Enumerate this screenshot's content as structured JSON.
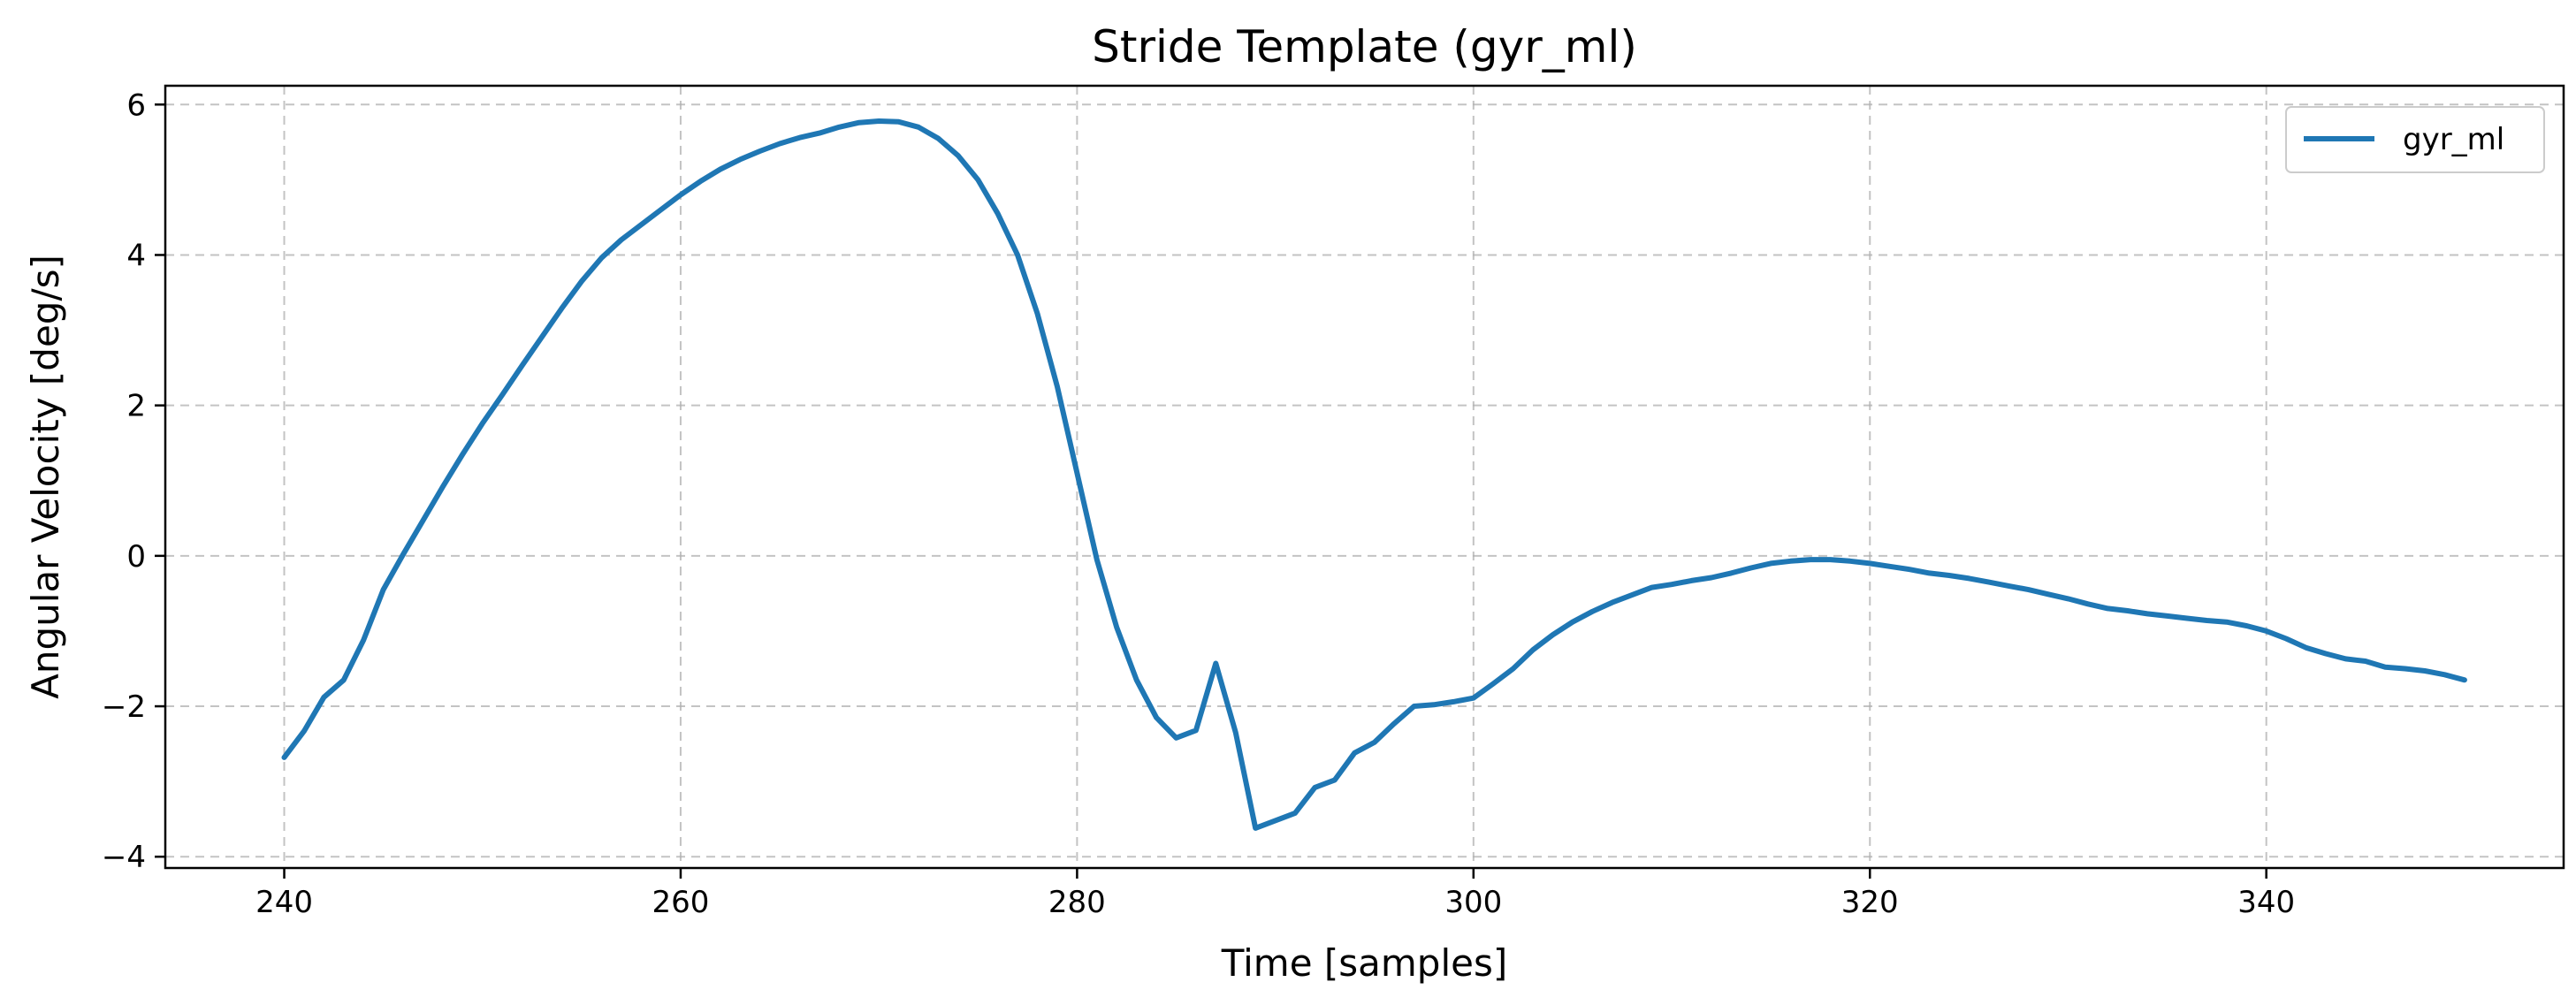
{
  "chart_data": {
    "type": "line",
    "title": "Stride Template (gyr_ml)",
    "xlabel": "Time [samples]",
    "ylabel": "Angular Velocity [deg/s]",
    "xlim": [
      234,
      355
    ],
    "ylim": [
      -4.15,
      6.25
    ],
    "xticks": [
      240,
      260,
      280,
      300,
      320,
      340
    ],
    "yticks": [
      -4,
      -2,
      0,
      2,
      4,
      6
    ],
    "xtick_labels": [
      "240",
      "260",
      "280",
      "300",
      "320",
      "340"
    ],
    "ytick_labels": [
      "−4",
      "−2",
      "0",
      "2",
      "4",
      "6"
    ],
    "grid": true,
    "legend_position": "upper right",
    "colors": {
      "series": "#1f77b4",
      "grid": "#b0b0b0",
      "axes": "#000000"
    },
    "series": [
      {
        "name": "gyr_ml",
        "x": [
          240,
          241,
          242,
          243,
          244,
          245,
          246,
          247,
          248,
          249,
          250,
          251,
          252,
          253,
          254,
          255,
          256,
          257,
          258,
          259,
          260,
          261,
          262,
          263,
          264,
          265,
          266,
          267,
          268,
          269,
          270,
          271,
          272,
          273,
          274,
          275,
          276,
          277,
          278,
          279,
          280,
          281,
          282,
          283,
          284,
          285,
          286,
          287,
          288,
          289,
          290,
          291,
          292,
          293,
          294,
          295,
          296,
          297,
          298,
          299,
          300,
          301,
          302,
          303,
          304,
          305,
          306,
          307,
          308,
          309,
          310,
          311,
          312,
          313,
          314,
          315,
          316,
          317,
          318,
          319,
          320,
          321,
          322,
          323,
          324,
          325,
          326,
          327,
          328,
          329,
          330,
          331,
          332,
          333,
          334,
          335,
          336,
          337,
          338,
          339,
          340,
          341,
          342,
          343,
          344,
          345,
          346,
          347,
          348,
          349,
          350
        ],
        "y": [
          -2.68,
          -2.33,
          -1.88,
          -1.65,
          -1.12,
          -0.45,
          0.02,
          0.47,
          0.92,
          1.35,
          1.76,
          2.14,
          2.53,
          2.91,
          3.29,
          3.65,
          3.96,
          4.2,
          4.4,
          4.6,
          4.8,
          4.98,
          5.14,
          5.27,
          5.38,
          5.48,
          5.56,
          5.62,
          5.7,
          5.76,
          5.78,
          5.77,
          5.7,
          5.55,
          5.32,
          5.0,
          4.55,
          4.0,
          3.22,
          2.25,
          1.1,
          -0.05,
          -0.95,
          -1.65,
          -2.15,
          -2.42,
          -2.32,
          -1.43,
          -2.35,
          -3.62,
          -3.52,
          -3.42,
          -3.08,
          -2.98,
          -2.62,
          -2.48,
          -2.23,
          -2.0,
          -1.98,
          -1.94,
          -1.89,
          -1.7,
          -1.5,
          -1.25,
          -1.05,
          -0.88,
          -0.74,
          -0.62,
          -0.52,
          -0.42,
          -0.38,
          -0.33,
          -0.29,
          -0.23,
          -0.16,
          -0.1,
          -0.07,
          -0.05,
          -0.05,
          -0.07,
          -0.1,
          -0.14,
          -0.18,
          -0.23,
          -0.26,
          -0.3,
          -0.35,
          -0.4,
          -0.45,
          -0.51,
          -0.57,
          -0.64,
          -0.7,
          -0.73,
          -0.77,
          -0.8,
          -0.83,
          -0.86,
          -0.88,
          -0.93,
          -1.0,
          -1.1,
          -1.22,
          -1.3,
          -1.37,
          -1.4,
          -1.48,
          -1.5,
          -1.53,
          -1.58,
          -1.65
        ]
      }
    ]
  }
}
